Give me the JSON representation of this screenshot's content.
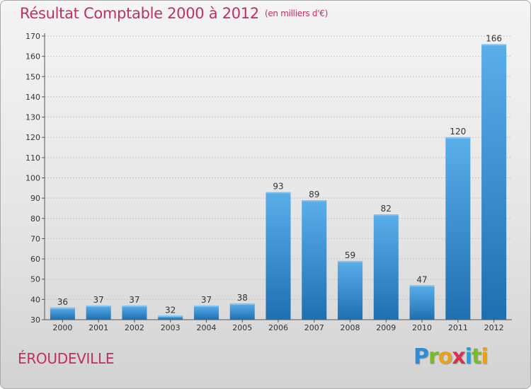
{
  "header": {
    "title": "Résultat Comptable 2000 à 2012",
    "unit": "(en milliers d'€)"
  },
  "footer": {
    "commune": "ÉROUDEVILLE",
    "logo_letters": [
      {
        "char": "P",
        "color": "#2e8bd6"
      },
      {
        "char": "r",
        "color": "#7ab929"
      },
      {
        "char": "o",
        "color": "#e7a21d"
      },
      {
        "char": "x",
        "color": "#d6314f"
      },
      {
        "char": "i",
        "color": "#1f9fdc"
      },
      {
        "char": "t",
        "color": "#7ab929"
      },
      {
        "char": "i",
        "color": "#e7a21d"
      }
    ]
  },
  "colors": {
    "accent": "#c0305a",
    "bar_light": "#5aaeea",
    "bar_dark": "#1f6fb0",
    "grid": "#c8c8c8"
  },
  "chart_data": {
    "type": "bar",
    "title": "Résultat Comptable 2000 à 2012",
    "subtitle": "(en milliers d'€)",
    "categories": [
      "2000",
      "2001",
      "2002",
      "2003",
      "2004",
      "2005",
      "2006",
      "2007",
      "2008",
      "2009",
      "2010",
      "2011",
      "2012"
    ],
    "values": [
      36,
      37,
      37,
      32,
      37,
      38,
      93,
      89,
      59,
      82,
      47,
      120,
      166
    ],
    "ylim": [
      30,
      170
    ],
    "yticks": [
      30,
      40,
      50,
      60,
      70,
      80,
      90,
      100,
      110,
      120,
      130,
      140,
      150,
      160,
      170
    ],
    "grid": true,
    "data_labels": true
  }
}
